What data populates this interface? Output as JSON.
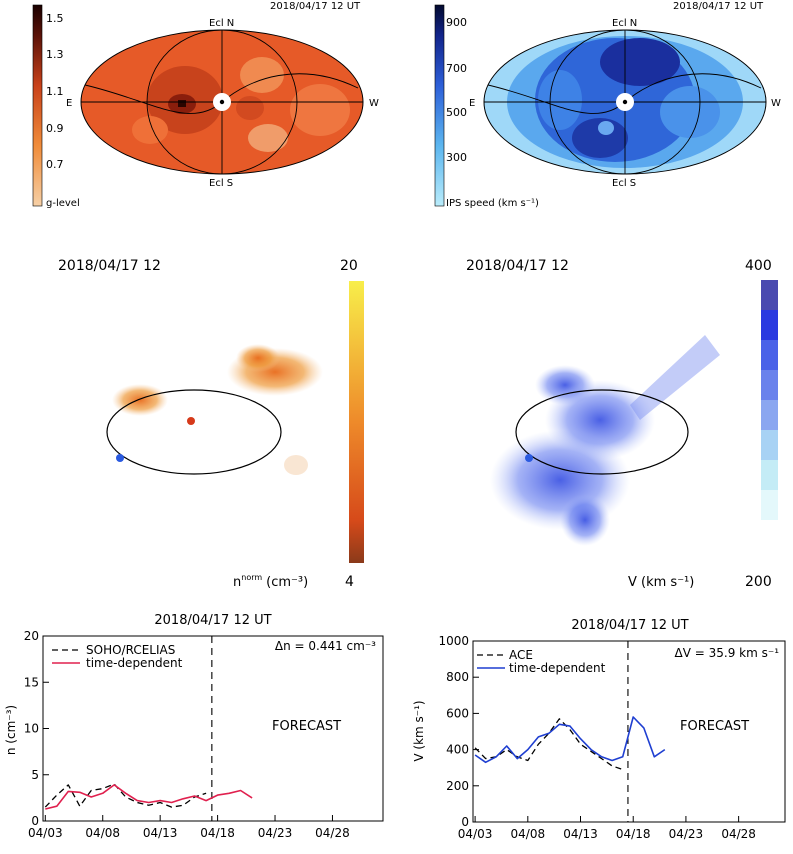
{
  "sky_maps": {
    "left": {
      "timestamp": "2018/04/17 12 UT",
      "colorbar_ticks": [
        "1.5",
        "1.3",
        "1.1",
        "0.9",
        "0.7"
      ],
      "colorbar_label": "g-level",
      "labels": {
        "north": "Ecl N",
        "south": "Ecl S",
        "east": "E",
        "west": "W"
      }
    },
    "right": {
      "timestamp": "2018/04/17 12 UT",
      "colorbar_ticks": [
        "900",
        "700",
        "500",
        "300"
      ],
      "colorbar_label": "IPS speed (km s⁻¹)",
      "labels": {
        "north": "Ecl N",
        "south": "Ecl S",
        "east": "E",
        "west": "W"
      }
    }
  },
  "views_3d": {
    "left": {
      "timestamp": "2018/04/17 12",
      "colorbar_max": "20",
      "colorbar_min": "4",
      "colorbar_label_base": "n",
      "colorbar_label_sup": "norm",
      "colorbar_label_unit": "(cm⁻³)"
    },
    "right": {
      "timestamp": "2018/04/17 12",
      "colorbar_max": "400",
      "colorbar_min": "200",
      "colorbar_label": "V (km s⁻¹)"
    }
  },
  "chart_data": [
    {
      "type": "line",
      "title": "2018/04/17 12 UT",
      "ylabel": "n (cm⁻³)",
      "ylim": [
        0,
        20
      ],
      "yticks": [
        "0",
        "5",
        "10",
        "15",
        "20"
      ],
      "xticks": [
        "04/03",
        "04/08",
        "04/13",
        "04/18",
        "04/23",
        "04/28"
      ],
      "delta_label": "Δn = 0.441 cm⁻³",
      "forecast_label": "FORECAST",
      "now_marker_date": "04/17 12",
      "series": [
        {
          "name": "SOHO/RCELIAS",
          "style": "dashed",
          "color": "#000000",
          "x": [
            "04/03",
            "04/04",
            "04/05",
            "04/06",
            "04/07",
            "04/08",
            "04/09",
            "04/10",
            "04/11",
            "04/12",
            "04/13",
            "04/14",
            "04/15",
            "04/16",
            "04/17"
          ],
          "y": [
            1.5,
            2.8,
            3.9,
            1.6,
            3.3,
            3.5,
            4.0,
            2.6,
            2.0,
            1.7,
            2.0,
            1.5,
            1.7,
            2.6,
            3.0
          ]
        },
        {
          "name": "time-dependent",
          "style": "solid",
          "color": "#e0204e",
          "x": [
            "04/03",
            "04/04",
            "04/05",
            "04/06",
            "04/07",
            "04/08",
            "04/09",
            "04/10",
            "04/11",
            "04/12",
            "04/13",
            "04/14",
            "04/15",
            "04/16",
            "04/17",
            "04/18",
            "04/19",
            "04/20",
            "04/21"
          ],
          "y": [
            1.3,
            1.6,
            3.2,
            3.1,
            2.6,
            3.0,
            3.9,
            3.0,
            2.2,
            2.0,
            2.2,
            2.0,
            2.4,
            2.7,
            2.2,
            2.8,
            3.0,
            3.3,
            2.5
          ]
        }
      ]
    },
    {
      "type": "line",
      "title": "2018/04/17 12 UT",
      "ylabel": "V (km s⁻¹)",
      "ylim": [
        0,
        1000
      ],
      "yticks": [
        "0",
        "200",
        "400",
        "600",
        "800",
        "1000"
      ],
      "xticks": [
        "04/03",
        "04/08",
        "04/13",
        "04/18",
        "04/23",
        "04/28"
      ],
      "delta_label": "ΔV = 35.9 km s⁻¹",
      "forecast_label": "FORECAST",
      "now_marker_date": "04/17 12",
      "series": [
        {
          "name": "ACE",
          "style": "dashed",
          "color": "#000000",
          "x": [
            "04/03",
            "04/04",
            "04/05",
            "04/06",
            "04/07",
            "04/08",
            "04/09",
            "04/10",
            "04/11",
            "04/12",
            "04/13",
            "04/14",
            "04/15",
            "04/16",
            "04/17"
          ],
          "y": [
            410,
            350,
            360,
            400,
            360,
            340,
            430,
            490,
            570,
            510,
            430,
            390,
            350,
            310,
            290
          ]
        },
        {
          "name": "time-dependent",
          "style": "solid",
          "color": "#1f3fd1",
          "x": [
            "04/03",
            "04/04",
            "04/05",
            "04/06",
            "04/07",
            "04/08",
            "04/09",
            "04/10",
            "04/11",
            "04/12",
            "04/13",
            "04/14",
            "04/15",
            "04/16",
            "04/17",
            "04/18",
            "04/19",
            "04/20",
            "04/21"
          ],
          "y": [
            370,
            330,
            360,
            420,
            350,
            400,
            470,
            490,
            540,
            530,
            460,
            400,
            360,
            340,
            360,
            580,
            520,
            360,
            400
          ]
        }
      ]
    }
  ]
}
